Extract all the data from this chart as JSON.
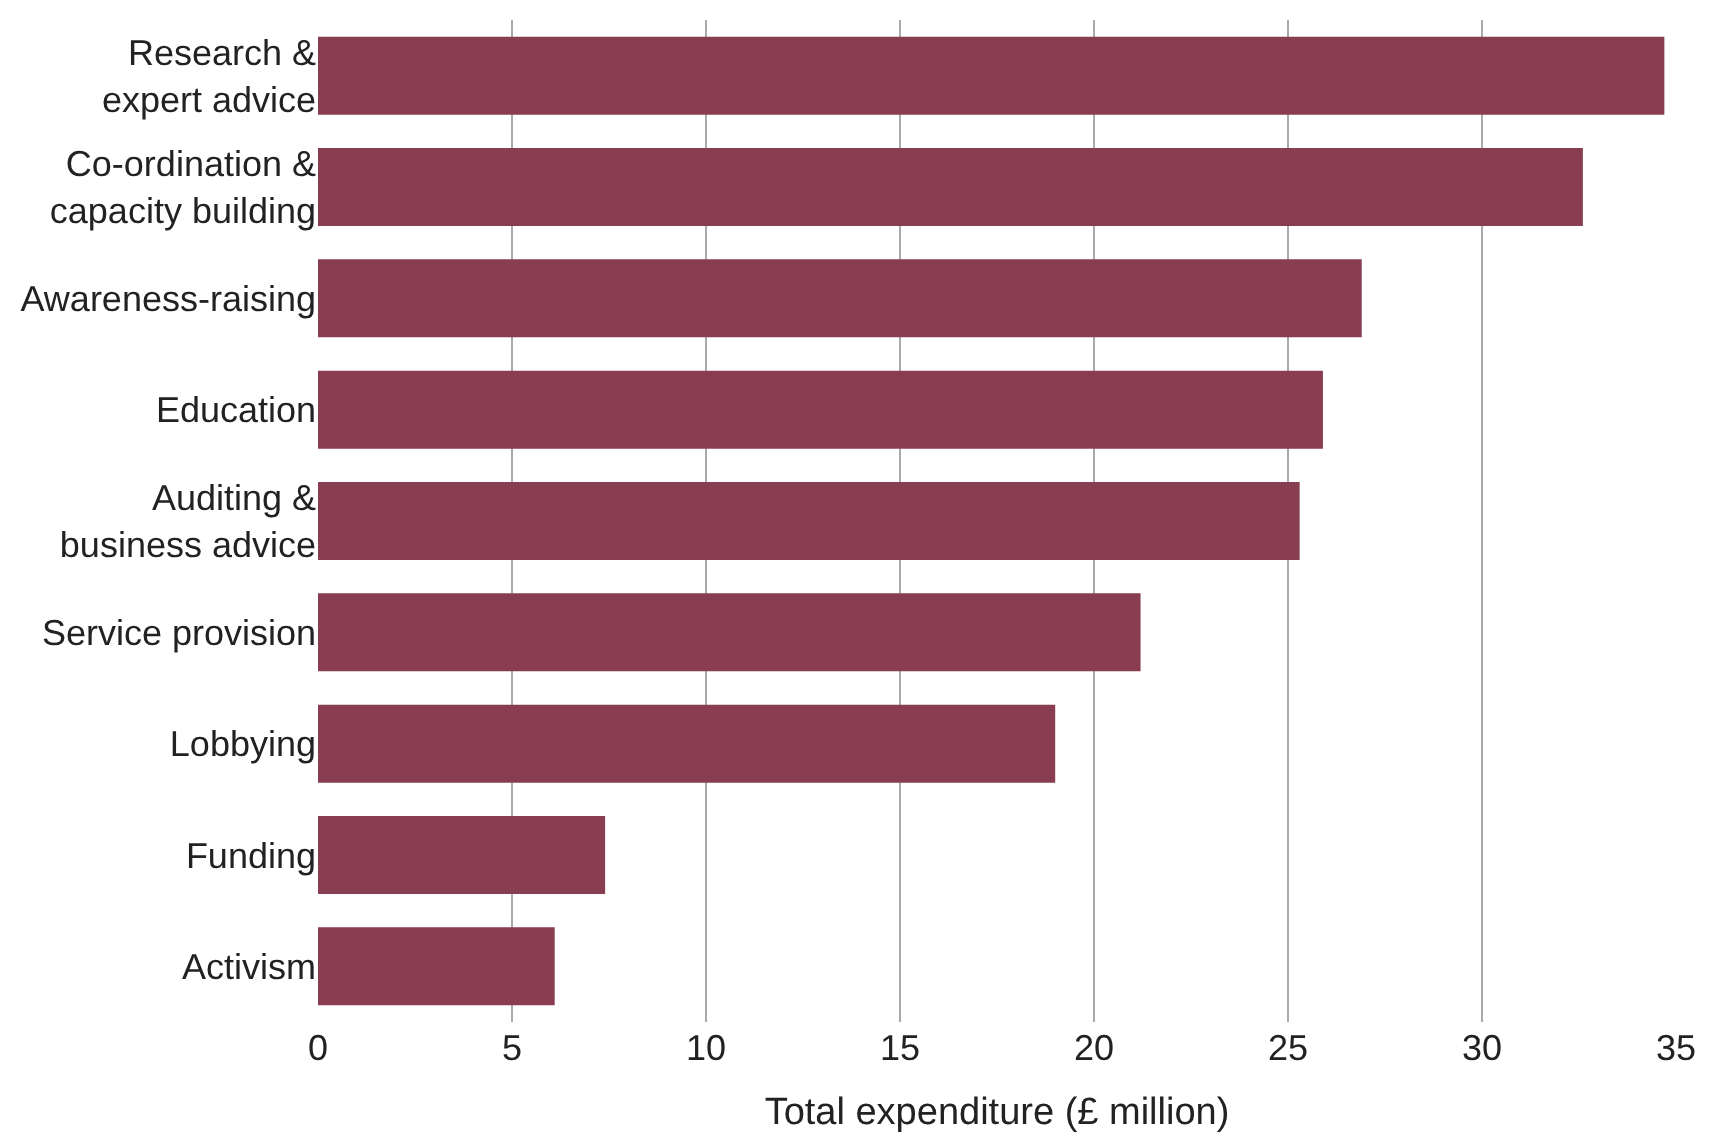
{
  "chart_data": {
    "type": "bar",
    "orientation": "horizontal",
    "xlabel": "Total expenditure (£ million)",
    "categories": [
      "Research &\nexpert advice",
      "Co-ordination &\ncapacity building",
      "Awareness-raising",
      "Education",
      "Auditing &\nbusiness advice",
      "Service provision",
      "Lobbying",
      "Funding",
      "Activism"
    ],
    "values": [
      34.7,
      32.6,
      26.9,
      25.9,
      25.3,
      21.2,
      19.0,
      7.4,
      6.1
    ],
    "color": "#883d50",
    "xlim": [
      0,
      35
    ],
    "xticks": [
      0,
      5,
      10,
      15,
      20,
      25,
      30,
      35
    ],
    "grid": "x"
  }
}
